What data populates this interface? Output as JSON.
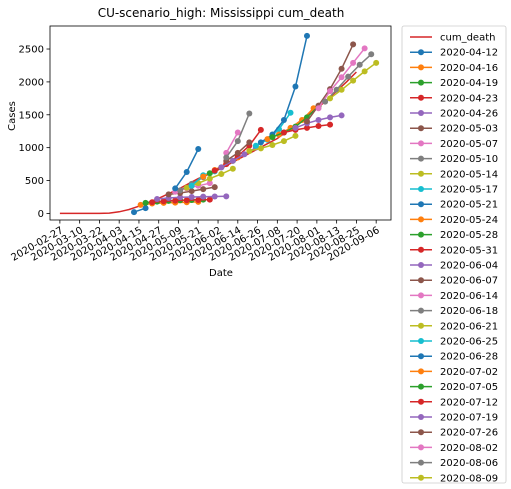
{
  "chart_data": {
    "type": "line",
    "title": "CU-scenario_high: Mississippi cum_death",
    "xlabel": "Date",
    "ylabel": "Cases",
    "ylim": [
      -100,
      2850
    ],
    "xlim": [
      "2020-02-21",
      "2020-09-15"
    ],
    "grid": false,
    "legend_position": "outside-right",
    "x_ticks": [
      "2020-02-27",
      "2020-03-10",
      "2020-03-22",
      "2020-04-03",
      "2020-04-15",
      "2020-04-27",
      "2020-05-09",
      "2020-05-21",
      "2020-06-02",
      "2020-06-14",
      "2020-06-26",
      "2020-07-08",
      "2020-07-20",
      "2020-08-01",
      "2020-08-13",
      "2020-08-25",
      "2020-09-06"
    ],
    "y_ticks": [
      0,
      500,
      1000,
      1500,
      2000,
      2500
    ],
    "series": [
      {
        "name": "cum_death",
        "color": "#d62728",
        "marker": false,
        "x": [
          "2020-02-27",
          "2020-03-10",
          "2020-03-22",
          "2020-03-28",
          "2020-04-03",
          "2020-04-09",
          "2020-04-15",
          "2020-04-21",
          "2020-04-27",
          "2020-05-03",
          "2020-05-09",
          "2020-05-15",
          "2020-05-21",
          "2020-05-27",
          "2020-06-02",
          "2020-06-08",
          "2020-06-14",
          "2020-06-20",
          "2020-06-26",
          "2020-07-02",
          "2020-07-08",
          "2020-07-14",
          "2020-07-20",
          "2020-07-26",
          "2020-08-01",
          "2020-08-07",
          "2020-08-13",
          "2020-08-19",
          "2020-08-25"
        ],
        "y": [
          0,
          0,
          0,
          5,
          25,
          60,
          110,
          170,
          230,
          300,
          370,
          450,
          530,
          590,
          660,
          740,
          820,
          900,
          980,
          1060,
          1140,
          1250,
          1370,
          1480,
          1600,
          1720,
          1860,
          2000,
          2150
        ]
      },
      {
        "name": "2020-04-12",
        "color": "#1f77b4",
        "x": [
          "2020-04-12",
          "2020-04-19"
        ],
        "y": [
          20,
          80
        ]
      },
      {
        "name": "2020-04-16",
        "color": "#ff7f0e",
        "x": [
          "2020-04-16",
          "2020-04-23",
          "2020-04-30",
          "2020-05-07",
          "2020-05-14",
          "2020-05-21"
        ],
        "y": [
          130,
          150,
          160,
          165,
          170,
          175
        ]
      },
      {
        "name": "2020-04-19",
        "color": "#2ca02c",
        "x": [
          "2020-04-19",
          "2020-04-26",
          "2020-05-03",
          "2020-05-10",
          "2020-05-17",
          "2020-05-24"
        ],
        "y": [
          160,
          180,
          190,
          200,
          205,
          210
        ]
      },
      {
        "name": "2020-04-23",
        "color": "#d62728",
        "x": [
          "2020-04-23",
          "2020-04-30",
          "2020-05-07",
          "2020-05-14",
          "2020-05-21",
          "2020-05-28"
        ],
        "y": [
          170,
          185,
          195,
          200,
          205,
          210
        ]
      },
      {
        "name": "2020-04-26",
        "color": "#9467bd",
        "x": [
          "2020-04-26",
          "2020-05-03",
          "2020-05-10",
          "2020-05-17",
          "2020-05-24",
          "2020-05-31",
          "2020-06-07"
        ],
        "y": [
          220,
          235,
          245,
          250,
          255,
          258,
          260
        ]
      },
      {
        "name": "2020-05-03",
        "color": "#8c564b",
        "x": [
          "2020-05-03",
          "2020-05-10",
          "2020-05-17",
          "2020-05-24",
          "2020-05-31"
        ],
        "y": [
          290,
          310,
          340,
          370,
          400
        ]
      },
      {
        "name": "2020-05-07",
        "color": "#e377c2",
        "x": [
          "2020-05-07",
          "2020-05-14",
          "2020-05-21",
          "2020-05-28"
        ],
        "y": [
          330,
          380,
          420,
          460
        ]
      },
      {
        "name": "2020-05-10",
        "color": "#7f7f7f",
        "x": [
          "2020-05-10",
          "2020-05-17",
          "2020-05-24"
        ],
        "y": [
          350,
          450,
          550
        ]
      },
      {
        "name": "2020-05-14",
        "color": "#bcbd22",
        "x": [
          "2020-05-14",
          "2020-05-21",
          "2020-05-28",
          "2020-06-04",
          "2020-06-11"
        ],
        "y": [
          390,
          460,
          530,
          600,
          680
        ]
      },
      {
        "name": "2020-05-17",
        "color": "#17becf",
        "x": [
          "2020-05-17",
          "2020-05-24",
          "2020-05-31"
        ],
        "y": [
          420,
          580,
          640
        ]
      },
      {
        "name": "2020-05-21",
        "color": "#1f77b4",
        "x": [
          "2020-05-07",
          "2020-05-14",
          "2020-05-21"
        ],
        "y": [
          380,
          630,
          980
        ]
      },
      {
        "name": "2020-05-24",
        "color": "#ff7f0e",
        "x": [
          "2020-05-24",
          "2020-05-31",
          "2020-06-07",
          "2020-06-14"
        ],
        "y": [
          560,
          660,
          760,
          850
        ]
      },
      {
        "name": "2020-05-28",
        "color": "#2ca02c",
        "x": [
          "2020-05-28",
          "2020-06-04",
          "2020-06-11"
        ],
        "y": [
          610,
          700,
          800
        ]
      },
      {
        "name": "2020-05-31",
        "color": "#d62728",
        "x": [
          "2020-05-31",
          "2020-06-07",
          "2020-06-14",
          "2020-06-21",
          "2020-06-28"
        ],
        "y": [
          650,
          750,
          870,
          1030,
          1270
        ]
      },
      {
        "name": "2020-06-04",
        "color": "#9467bd",
        "x": [
          "2020-06-04",
          "2020-06-11",
          "2020-06-18",
          "2020-06-25"
        ],
        "y": [
          700,
          800,
          900,
          1000
        ]
      },
      {
        "name": "2020-06-07",
        "color": "#8c564b",
        "x": [
          "2020-06-07",
          "2020-06-14",
          "2020-06-21"
        ],
        "y": [
          800,
          920,
          1080
        ]
      },
      {
        "name": "2020-06-14",
        "color": "#e377c2",
        "x": [
          "2020-06-07",
          "2020-06-14"
        ],
        "y": [
          920,
          1230
        ]
      },
      {
        "name": "2020-06-18",
        "color": "#7f7f7f",
        "x": [
          "2020-06-07",
          "2020-06-14",
          "2020-06-21"
        ],
        "y": [
          850,
          1100,
          1520
        ]
      },
      {
        "name": "2020-06-21",
        "color": "#bcbd22",
        "x": [
          "2020-06-21",
          "2020-06-28",
          "2020-07-05",
          "2020-07-12",
          "2020-07-19"
        ],
        "y": [
          950,
          990,
          1040,
          1100,
          1180
        ]
      },
      {
        "name": "2020-06-25",
        "color": "#17becf",
        "x": [
          "2020-06-25",
          "2020-07-02",
          "2020-07-09",
          "2020-07-16"
        ],
        "y": [
          1030,
          1120,
          1280,
          1530
        ]
      },
      {
        "name": "2020-06-28",
        "color": "#1f77b4",
        "x": [
          "2020-06-28",
          "2020-07-05",
          "2020-07-12",
          "2020-07-19",
          "2020-07-26"
        ],
        "y": [
          1080,
          1200,
          1420,
          1930,
          2700
        ]
      },
      {
        "name": "2020-07-02",
        "color": "#ff7f0e",
        "x": [
          "2020-07-02",
          "2020-07-09",
          "2020-07-16",
          "2020-07-23",
          "2020-07-30"
        ],
        "y": [
          1130,
          1200,
          1300,
          1420,
          1600
        ]
      },
      {
        "name": "2020-07-05",
        "color": "#2ca02c",
        "x": [
          "2020-07-05",
          "2020-07-12",
          "2020-07-19",
          "2020-07-26",
          "2020-08-02"
        ],
        "y": [
          1160,
          1230,
          1320,
          1460,
          1630
        ]
      },
      {
        "name": "2020-07-12",
        "color": "#d62728",
        "x": [
          "2020-07-12",
          "2020-07-19",
          "2020-07-26",
          "2020-08-02",
          "2020-08-09"
        ],
        "y": [
          1230,
          1270,
          1300,
          1330,
          1350
        ]
      },
      {
        "name": "2020-07-19",
        "color": "#9467bd",
        "x": [
          "2020-07-19",
          "2020-07-26",
          "2020-08-02",
          "2020-08-09",
          "2020-08-16"
        ],
        "y": [
          1300,
          1370,
          1420,
          1460,
          1490
        ]
      },
      {
        "name": "2020-07-26",
        "color": "#8c564b",
        "x": [
          "2020-07-26",
          "2020-08-02",
          "2020-08-09",
          "2020-08-16",
          "2020-08-23"
        ],
        "y": [
          1400,
          1640,
          1890,
          2200,
          2570
        ]
      },
      {
        "name": "2020-08-02",
        "color": "#e377c2",
        "x": [
          "2020-08-02",
          "2020-08-09",
          "2020-08-16",
          "2020-08-23",
          "2020-08-30"
        ],
        "y": [
          1600,
          1860,
          2070,
          2290,
          2510
        ]
      },
      {
        "name": "2020-08-06",
        "color": "#7f7f7f",
        "x": [
          "2020-08-06",
          "2020-08-13",
          "2020-08-20",
          "2020-08-27",
          "2020-09-03"
        ],
        "y": [
          1700,
          1880,
          2080,
          2260,
          2420
        ]
      },
      {
        "name": "2020-08-09",
        "color": "#bcbd22",
        "x": [
          "2020-08-09",
          "2020-08-16",
          "2020-08-23",
          "2020-08-30",
          "2020-09-06"
        ],
        "y": [
          1750,
          1880,
          2020,
          2160,
          2290
        ]
      }
    ]
  }
}
